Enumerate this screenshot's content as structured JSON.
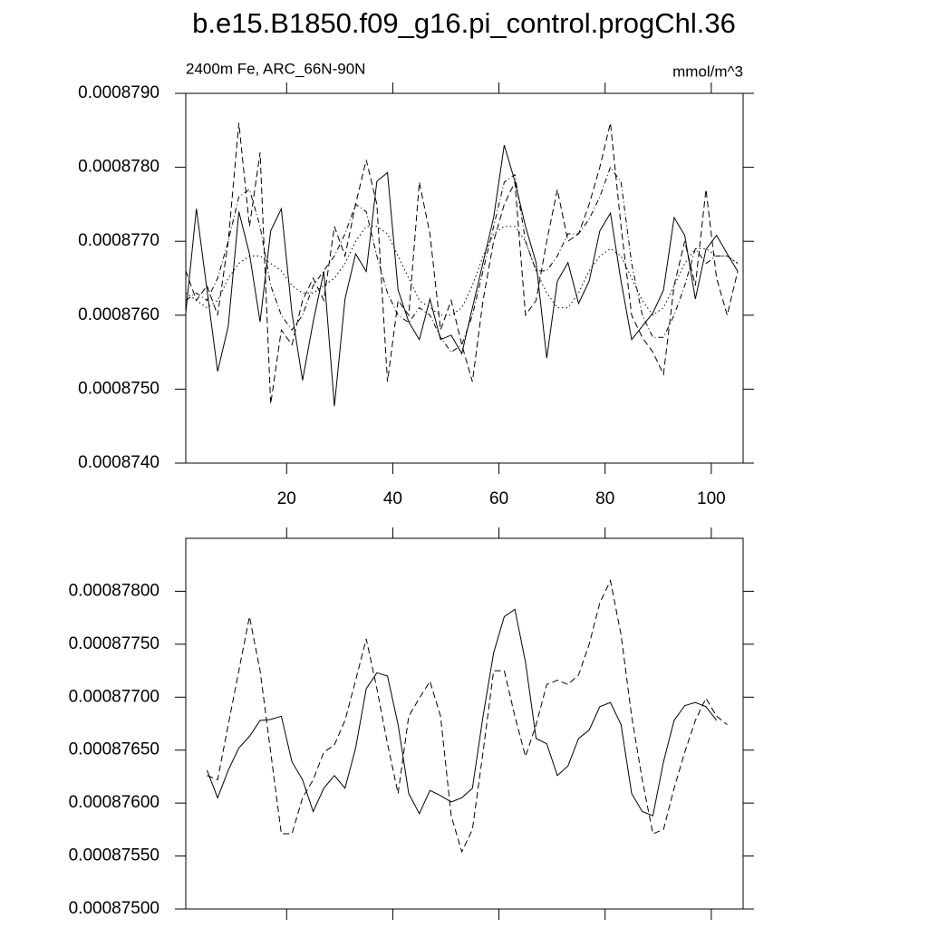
{
  "chart_data": [
    {
      "type": "line",
      "title": "b.e15.B1850.f09_g16.pi_control.progChl.36",
      "subtitle_left": "2400m Fe, ARC_66N-90N",
      "subtitle_right": "mmol/m^3",
      "x": [
        1,
        3,
        5,
        7,
        9,
        11,
        13,
        15,
        17,
        19,
        21,
        23,
        25,
        27,
        29,
        31,
        33,
        35,
        37,
        39,
        41,
        43,
        45,
        47,
        49,
        51,
        53,
        55,
        57,
        59,
        61,
        63,
        65,
        67,
        69,
        71,
        73,
        75,
        77,
        79,
        81,
        83,
        85,
        87,
        89,
        91,
        93,
        95,
        97,
        99,
        101,
        103,
        105
      ],
      "series": [
        {
          "color": "#000000",
          "dash": "solid",
          "values": [
            0.00087603,
            0.00087744,
            0.00087634,
            0.00087524,
            0.00087585,
            0.0008774,
            0.00087683,
            0.00087591,
            0.00087714,
            0.00087744,
            0.00087603,
            0.00087512,
            0.00087591,
            0.00087659,
            0.00087477,
            0.00087622,
            0.00087683,
            0.00087659,
            0.00087781,
            0.00087793,
            0.00087634,
            0.00087591,
            0.00087567,
            0.00087622,
            0.00087567,
            0.00087573,
            0.00087548,
            0.0008761,
            0.00087671,
            0.00087732,
            0.0008783,
            0.00087781,
            0.0008772,
            0.00087671,
            0.00087542,
            0.00087646,
            0.00087671,
            0.00087616,
            0.00087646,
            0.00087714,
            0.00087738,
            0.00087646,
            0.00087567,
            0.00087585,
            0.00087603,
            0.00087634,
            0.00087732,
            0.00087708,
            0.00087622,
            0.00087689,
            0.00087708,
            0.00087683,
            0.00087659
          ]
        },
        {
          "color": "#000000",
          "dash": "dashed",
          "values": [
            0.0008766,
            0.0008762,
            0.0008764,
            0.000876,
            0.000877,
            0.0008786,
            0.0008772,
            0.0008782,
            0.0008748,
            0.0008758,
            0.0008756,
            0.0008762,
            0.0008765,
            0.0008762,
            0.0008772,
            0.0008768,
            0.0008775,
            0.0008781,
            0.0008775,
            0.0008751,
            0.0008762,
            0.000876,
            0.0008778,
            0.0008771,
            0.0008758,
            0.0008762,
            0.0008756,
            0.0008751,
            0.0008762,
            0.000877,
            0.0008775,
            0.0008778,
            0.000876,
            0.0008762,
            0.000877,
            0.0008777,
            0.000877,
            0.0008771,
            0.0008775,
            0.000878,
            0.0008786,
            0.0008772,
            0.000876,
            0.0008757,
            0.0008755,
            0.0008752,
            0.0008764,
            0.000877,
            0.0008764,
            0.0008777,
            0.0008765,
            0.000876,
            0.0008766
          ]
        },
        {
          "color": "#000000",
          "dash": "dashdot",
          "values": [
            0.0008762,
            0.0008763,
            0.0008762,
            0.0008765,
            0.000877,
            0.0008776,
            0.0008777,
            0.0008772,
            0.0008764,
            0.000876,
            0.0008758,
            0.000876,
            0.0008764,
            0.0008766,
            0.0008768,
            0.0008771,
            0.0008775,
            0.0008774,
            0.0008768,
            0.0008763,
            0.000876,
            0.0008759,
            0.0008761,
            0.000876,
            0.0008757,
            0.0008755,
            0.0008756,
            0.000876,
            0.0008766,
            0.0008772,
            0.0008778,
            0.0008779,
            0.000877,
            0.0008766,
            0.0008766,
            0.0008768,
            0.0008771,
            0.0008771,
            0.0008773,
            0.0008776,
            0.000878,
            0.0008778,
            0.0008767,
            0.000876,
            0.0008757,
            0.0008757,
            0.000876,
            0.0008764,
            0.0008769,
            0.0008767,
            0.0008768,
            0.0008768,
            0.0008767
          ]
        },
        {
          "color": "#000000",
          "dash": "dotted",
          "values": [
            0.0008763,
            0.0008762,
            0.0008761,
            0.0008762,
            0.0008765,
            0.0008767,
            0.0008768,
            0.0008768,
            0.0008767,
            0.0008766,
            0.0008764,
            0.0008763,
            0.0008763,
            0.0008764,
            0.0008765,
            0.0008767,
            0.000877,
            0.0008772,
            0.0008772,
            0.0008771,
            0.0008768,
            0.0008765,
            0.0008762,
            0.0008761,
            0.000876,
            0.000876,
            0.0008761,
            0.0008764,
            0.0008768,
            0.0008771,
            0.0008772,
            0.0008772,
            0.000877,
            0.0008766,
            0.0008763,
            0.0008761,
            0.0008761,
            0.0008763,
            0.0008766,
            0.0008768,
            0.0008769,
            0.0008768,
            0.0008765,
            0.0008762,
            0.000876,
            0.0008761,
            0.0008764,
            0.0008767,
            0.0008769,
            0.0008769,
            0.0008768,
            0.0008768,
            0.0008767
          ]
        }
      ],
      "xlim": [
        1,
        106
      ],
      "xticks": [
        20,
        40,
        60,
        80,
        100
      ],
      "ylim": [
        0.000874,
        0.000879
      ],
      "yticks": [
        {
          "value": 0.000874,
          "label": "0.0008740"
        },
        {
          "value": 0.000875,
          "label": "0.0008750"
        },
        {
          "value": 0.000876,
          "label": "0.0008760"
        },
        {
          "value": 0.000877,
          "label": "0.0008770"
        },
        {
          "value": 0.000878,
          "label": "0.0008780"
        },
        {
          "value": 0.000879,
          "label": "0.0008790"
        }
      ]
    },
    {
      "type": "line",
      "x": [
        5,
        7,
        9,
        11,
        13,
        15,
        17,
        19,
        21,
        23,
        25,
        27,
        29,
        31,
        33,
        35,
        37,
        39,
        41,
        43,
        45,
        47,
        49,
        51,
        53,
        55,
        57,
        59,
        61,
        63,
        65,
        67,
        69,
        71,
        73,
        75,
        77,
        79,
        81,
        83,
        85,
        87,
        89,
        91,
        93,
        95,
        97,
        99,
        101,
        103
      ],
      "series": [
        {
          "color": "#000000",
          "dash": "solid",
          "values": [
            0.00087631,
            0.00087605,
            0.00087631,
            0.00087652,
            0.00087663,
            0.00087678,
            0.00087679,
            0.00087682,
            0.00087639,
            0.00087622,
            0.00087592,
            0.00087614,
            0.00087626,
            0.00087614,
            0.00087652,
            0.00087708,
            0.00087723,
            0.0008772,
            0.00087674,
            0.00087609,
            0.0008759,
            0.00087612,
            0.00087607,
            0.00087601,
            0.00087605,
            0.00087614,
            0.00087682,
            0.00087742,
            0.00087776,
            0.00087783,
            0.00087733,
            0.00087661,
            0.00087656,
            0.00087626,
            0.00087635,
            0.00087661,
            0.00087669,
            0.00087691,
            0.00087695,
            0.00087674,
            0.00087609,
            0.00087592,
            0.00087588,
            0.00087639,
            0.00087678,
            0.00087692,
            0.00087695,
            0.00087691,
            0.00087678,
            null
          ]
        },
        {
          "color": "#000000",
          "dash": "dashed",
          "values": [
            0.00087626,
            0.00087622,
            0.00087674,
            0.00087725,
            0.00087776,
            0.00087725,
            0.00087648,
            0.00087571,
            0.00087571,
            0.00087605,
            0.00087622,
            0.00087648,
            0.00087655,
            0.00087678,
            0.00087716,
            0.00087755,
            0.00087708,
            0.00087656,
            0.00087609,
            0.00087682,
            0.00087699,
            0.00087715,
            0.00087682,
            0.00087588,
            0.00087554,
            0.00087575,
            0.00087648,
            0.00087725,
            0.00087725,
            0.00087682,
            0.00087644,
            0.00087674,
            0.00087712,
            0.00087716,
            0.00087712,
            0.00087721,
            0.0008775,
            0.00087789,
            0.0008781,
            0.00087759,
            0.00087682,
            0.00087622,
            0.00087571,
            0.00087575,
            0.00087614,
            0.00087648,
            0.00087678,
            0.00087699,
            0.00087682,
            0.00087674
          ]
        }
      ],
      "xlim": [
        1,
        106
      ],
      "xticks": [
        20,
        40,
        60,
        80,
        100
      ],
      "ylim": [
        0.000875,
        0.0008785
      ],
      "yticks": [
        {
          "value": 0.000875,
          "label": "0.00087500"
        },
        {
          "value": 0.0008755,
          "label": "0.00087550"
        },
        {
          "value": 0.000876,
          "label": "0.00087600"
        },
        {
          "value": 0.0008765,
          "label": "0.00087650"
        },
        {
          "value": 0.000877,
          "label": "0.00087700"
        },
        {
          "value": 0.0008775,
          "label": "0.00087750"
        },
        {
          "value": 0.000878,
          "label": "0.00087800"
        }
      ]
    }
  ]
}
